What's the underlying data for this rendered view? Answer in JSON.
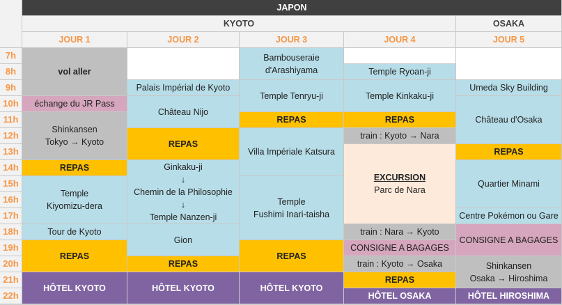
{
  "country": "JAPON",
  "cities": [
    {
      "label": "KYOTO",
      "days": [
        0,
        1,
        2,
        3
      ]
    },
    {
      "label": "OSAKA",
      "days": [
        4
      ]
    }
  ],
  "days": [
    "JOUR 1",
    "JOUR 2",
    "JOUR 3",
    "JOUR 4",
    "JOUR 5"
  ],
  "hours": [
    "7h",
    "8h",
    "9h",
    "10h",
    "11h",
    "12h",
    "13h",
    "14h",
    "15h",
    "16h",
    "17h",
    "18h",
    "19h",
    "20h",
    "21h",
    "22h"
  ],
  "colors": {
    "transport": "#bfbfbf",
    "visit": "#b7dde8",
    "meal": "#ffc000",
    "admin": "#d5a6bd",
    "hotel": "#8064a2",
    "excursion": "#fdeada",
    "free": "#ffffff",
    "header": "#404040",
    "subheader": "#f2f2f2",
    "day_label": "#f79646"
  },
  "schedule": [
    [
      {
        "start": 7,
        "end": 9,
        "lines": [
          "vol aller"
        ],
        "type": "transport",
        "style": "bold"
      },
      {
        "start": 10,
        "end": 10,
        "lines": [
          "échange du JR Pass"
        ],
        "type": "admin"
      },
      {
        "start": 11,
        "end": 13,
        "lines": [
          "Shinkansen",
          "Tokyo → Kyoto"
        ],
        "type": "transport"
      },
      {
        "start": 14,
        "end": 14,
        "lines": [
          "REPAS"
        ],
        "type": "meal",
        "style": "bold"
      },
      {
        "start": 15,
        "end": 17,
        "lines": [
          "Temple",
          "Kiyomizu-dera"
        ],
        "type": "visit"
      },
      {
        "start": 18,
        "end": 18,
        "lines": [
          "Tour de Kyoto"
        ],
        "type": "visit"
      },
      {
        "start": 19,
        "end": 20,
        "lines": [
          "REPAS"
        ],
        "type": "meal",
        "style": "bold"
      },
      {
        "start": 21,
        "end": 22,
        "lines": [
          "HÔTEL KYOTO"
        ],
        "type": "hotel",
        "style": "white"
      }
    ],
    [
      {
        "start": 7,
        "end": 8,
        "lines": [],
        "type": "free"
      },
      {
        "start": 9,
        "end": 9,
        "lines": [
          "Palais Impérial de Kyoto"
        ],
        "type": "visit"
      },
      {
        "start": 10,
        "end": 11,
        "lines": [
          "Château Nijo"
        ],
        "type": "visit"
      },
      {
        "start": 12,
        "end": 13,
        "lines": [
          "REPAS"
        ],
        "type": "meal",
        "style": "bold"
      },
      {
        "start": 14,
        "end": 17,
        "lines": [
          "Ginkaku-ji",
          "↓",
          "Chemin de la Philosophie",
          "↓",
          "Temple Nanzen-ji"
        ],
        "type": "visit"
      },
      {
        "start": 18,
        "end": 19,
        "lines": [
          "Gion"
        ],
        "type": "visit"
      },
      {
        "start": 20,
        "end": 20,
        "lines": [
          "REPAS"
        ],
        "type": "meal",
        "style": "bold"
      },
      {
        "start": 21,
        "end": 22,
        "lines": [
          "HÔTEL KYOTO"
        ],
        "type": "hotel",
        "style": "white"
      }
    ],
    [
      {
        "start": 7,
        "end": 8,
        "lines": [
          "Bambouseraie",
          "d'Arashiyama"
        ],
        "type": "visit"
      },
      {
        "start": 9,
        "end": 10,
        "lines": [
          "Temple Tenryu-ji"
        ],
        "type": "visit"
      },
      {
        "start": 11,
        "end": 11,
        "lines": [
          "REPAS"
        ],
        "type": "meal",
        "style": "bold"
      },
      {
        "start": 12,
        "end": 14,
        "lines": [
          "Villa Impériale Katsura"
        ],
        "type": "visit"
      },
      {
        "start": 15,
        "end": 18,
        "lines": [
          "Temple",
          "Fushimi Inari-taisha"
        ],
        "type": "visit"
      },
      {
        "start": 19,
        "end": 20,
        "lines": [
          "REPAS"
        ],
        "type": "meal",
        "style": "bold"
      },
      {
        "start": 21,
        "end": 22,
        "lines": [
          "HÔTEL KYOTO"
        ],
        "type": "hotel",
        "style": "white"
      }
    ],
    [
      {
        "start": 7,
        "end": 7,
        "lines": [],
        "type": "free"
      },
      {
        "start": 8,
        "end": 8,
        "lines": [
          "Temple Ryoan-ji"
        ],
        "type": "visit"
      },
      {
        "start": 9,
        "end": 10,
        "lines": [
          "Temple Kinkaku-ji"
        ],
        "type": "visit"
      },
      {
        "start": 11,
        "end": 11,
        "lines": [
          "REPAS"
        ],
        "type": "meal",
        "style": "bold"
      },
      {
        "start": 12,
        "end": 12,
        "lines": [
          "train : Kyoto → Nara"
        ],
        "type": "transport"
      },
      {
        "start": 13,
        "end": 17,
        "lines": [
          "EXCURSION",
          "Parc de Nara"
        ],
        "type": "excursion",
        "style": "underline-first"
      },
      {
        "start": 18,
        "end": 18,
        "lines": [
          "train : Nara → Kyoto"
        ],
        "type": "transport"
      },
      {
        "start": 19,
        "end": 19,
        "lines": [
          "CONSIGNE A BAGAGES"
        ],
        "type": "admin"
      },
      {
        "start": 20,
        "end": 20,
        "lines": [
          "train : Kyoto → Osaka"
        ],
        "type": "transport"
      },
      {
        "start": 21,
        "end": 21,
        "lines": [
          "REPAS"
        ],
        "type": "meal",
        "style": "bold"
      },
      {
        "start": 22,
        "end": 22,
        "lines": [
          "HÔTEL OSAKA"
        ],
        "type": "hotel",
        "style": "white"
      }
    ],
    [
      {
        "start": 7,
        "end": 8,
        "lines": [],
        "type": "free"
      },
      {
        "start": 9,
        "end": 9,
        "lines": [
          "Umeda Sky Building"
        ],
        "type": "visit"
      },
      {
        "start": 10,
        "end": 12,
        "lines": [
          "Château d'Osaka"
        ],
        "type": "visit"
      },
      {
        "start": 13,
        "end": 13,
        "lines": [
          "REPAS"
        ],
        "type": "meal",
        "style": "bold"
      },
      {
        "start": 14,
        "end": 16,
        "lines": [
          "Quartier Minami"
        ],
        "type": "visit"
      },
      {
        "start": 17,
        "end": 17,
        "lines": [
          "Centre Pokémon ou Gare"
        ],
        "type": "visit"
      },
      {
        "start": 18,
        "end": 19,
        "lines": [
          "CONSIGNE A BAGAGES"
        ],
        "type": "admin"
      },
      {
        "start": 20,
        "end": 21,
        "lines": [
          "Shinkansen",
          "Osaka → Hiroshima"
        ],
        "type": "transport"
      },
      {
        "start": 22,
        "end": 22,
        "lines": [
          "HÔTEL HIROSHIMA"
        ],
        "type": "hotel",
        "style": "white"
      }
    ]
  ]
}
